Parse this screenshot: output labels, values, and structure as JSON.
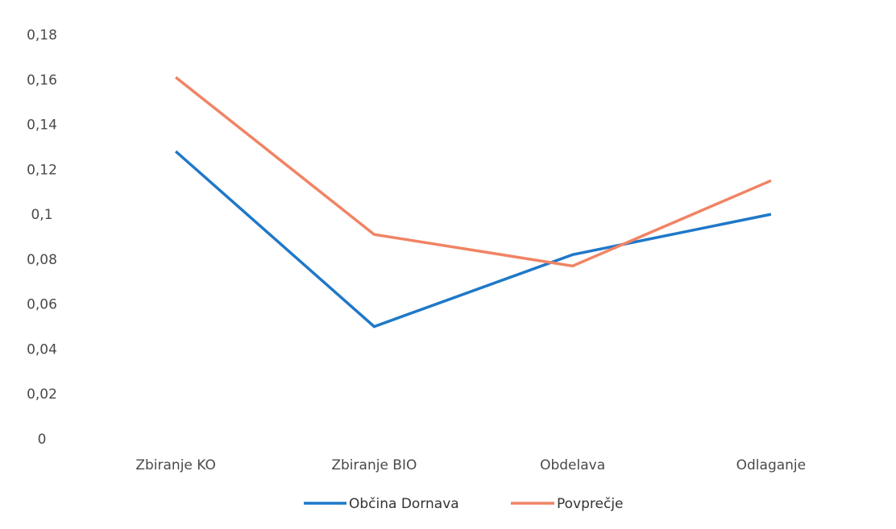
{
  "chart_data": {
    "type": "line",
    "categories": [
      "Zbiranje KO",
      "Zbiranje BIO",
      "Obdelava",
      "Odlaganje"
    ],
    "series": [
      {
        "name": "Občina Dornava",
        "values": [
          0.128,
          0.05,
          0.082,
          0.1
        ],
        "color": "#1f78c8"
      },
      {
        "name": "Povprečje",
        "values": [
          0.161,
          0.091,
          0.077,
          0.115
        ],
        "color": "#f08464"
      }
    ],
    "ylim": [
      0,
      0.18
    ],
    "yticks": [
      "0",
      "0,02",
      "0,04",
      "0,06",
      "0,08",
      "0,1",
      "0,12",
      "0,14",
      "0,16",
      "0,18"
    ],
    "grid": false,
    "legend_position": "bottom"
  }
}
